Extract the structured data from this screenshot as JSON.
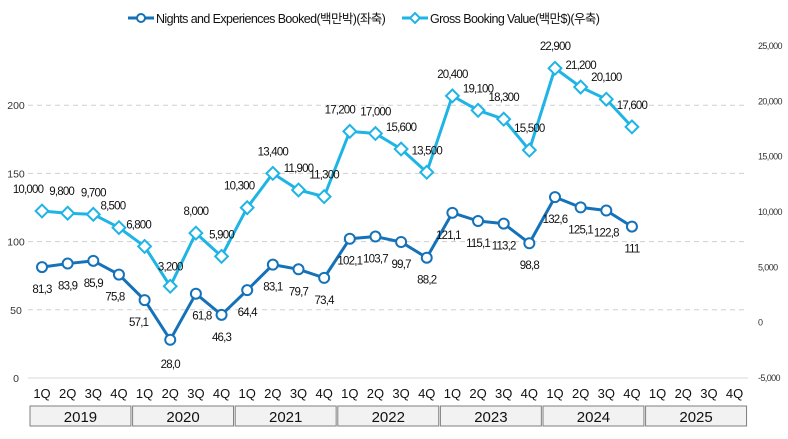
{
  "chart_data": {
    "type": "line",
    "title": "",
    "categories": [
      "1Q",
      "2Q",
      "3Q",
      "4Q",
      "1Q",
      "2Q",
      "3Q",
      "4Q",
      "1Q",
      "2Q",
      "3Q",
      "4Q",
      "1Q",
      "2Q",
      "3Q",
      "4Q",
      "1Q",
      "2Q",
      "3Q",
      "4Q",
      "1Q",
      "2Q",
      "3Q",
      "4Q",
      "1Q",
      "2Q",
      "3Q",
      "4Q"
    ],
    "year_groups": [
      "2019",
      "2020",
      "2021",
      "2022",
      "2023",
      "2024",
      "2025"
    ],
    "series": [
      {
        "name": "Nights and Experiences Booked(백만박)(좌축)",
        "axis": "left",
        "color": "#1572b9",
        "marker": "circle",
        "values": [
          81.3,
          83.9,
          85.9,
          75.8,
          57.1,
          28.0,
          61.8,
          46.3,
          64.4,
          83.1,
          79.7,
          73.4,
          102.1,
          103.7,
          99.7,
          88.2,
          121.1,
          115.1,
          113.2,
          98.8,
          132.6,
          125.1,
          122.8,
          111,
          null,
          null,
          null,
          null
        ],
        "labels": [
          "81,3",
          "83,9",
          "85,9",
          "75,8",
          "57,1",
          "28,0",
          "61,8",
          "46,3",
          "64,4",
          "83,1",
          "79,7",
          "73,4",
          "102,1",
          "103,7",
          "99,7",
          "88,2",
          "121,1",
          "115,1",
          "113,2",
          "98,8",
          "132,6",
          "125,1",
          "122,8",
          "111"
        ]
      },
      {
        "name": "Gross Booking Value(백만$)(우축)",
        "axis": "right",
        "color": "#1eb4e6",
        "marker": "diamond",
        "values": [
          10000,
          9800,
          9700,
          8500,
          6800,
          3200,
          8000,
          5900,
          10300,
          13400,
          11900,
          11300,
          17200,
          17000,
          15600,
          13500,
          20400,
          19100,
          18300,
          15500,
          22900,
          21200,
          20100,
          17600,
          null,
          null,
          null,
          null
        ],
        "labels": [
          "10,000",
          "9,800",
          "9,700",
          "8,500",
          "6,800",
          "3,200",
          "8,000",
          "5,900",
          "10,300",
          "13,400",
          "11,900",
          "11,300",
          "17,200",
          "17,000",
          "15,600",
          "13,500",
          "20,400",
          "19,100",
          "18,300",
          "15,500",
          "22,900",
          "21,200",
          "20,100",
          "17,600"
        ]
      }
    ],
    "y_left": {
      "ylim": [
        0,
        250
      ],
      "ticks": [
        "0",
        "50",
        "100",
        "150",
        "200"
      ],
      "tick_values": [
        0,
        50,
        100,
        150,
        200
      ]
    },
    "y_right": {
      "ylim": [
        -5000,
        25000
      ],
      "ticks": [
        "-5,000",
        "0",
        "5,000",
        "10,000",
        "15,000",
        "20,000",
        "25,000"
      ],
      "tick_values": [
        -5000,
        0,
        5000,
        10000,
        15000,
        20000,
        25000
      ]
    },
    "grid": true,
    "legend_position": "top-center",
    "xlabel": "",
    "ylabel": ""
  }
}
